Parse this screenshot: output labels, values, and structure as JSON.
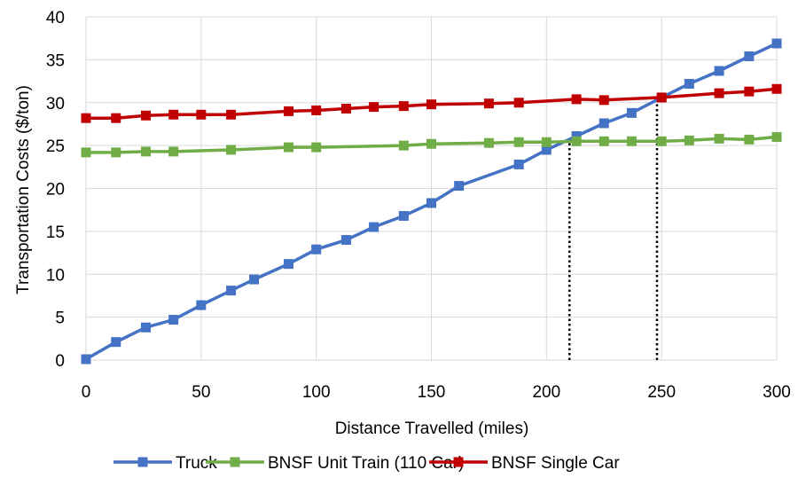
{
  "chart_data": {
    "type": "line",
    "title": "",
    "xlabel": "Distance Travelled (miles)",
    "ylabel": "Transportation Costs ($/ton)",
    "xlim": [
      0,
      300
    ],
    "ylim": [
      0,
      40
    ],
    "xticks": [
      0,
      50,
      100,
      150,
      200,
      250,
      300
    ],
    "yticks": [
      0,
      5,
      10,
      15,
      20,
      25,
      30,
      35,
      40
    ],
    "grid": true,
    "legend_position": "bottom",
    "series": [
      {
        "name": "Truck",
        "color": "#4472C4",
        "x": [
          0,
          13,
          26,
          38,
          50,
          63,
          73,
          88,
          100,
          113,
          125,
          138,
          150,
          162,
          188,
          200,
          213,
          225,
          237,
          250,
          262,
          275,
          288,
          300
        ],
        "y": [
          0.1,
          2.1,
          3.8,
          4.7,
          6.4,
          8.1,
          9.4,
          11.2,
          12.9,
          14.0,
          15.5,
          16.8,
          18.3,
          20.3,
          22.8,
          24.5,
          26.1,
          27.6,
          28.8,
          30.6,
          32.2,
          33.7,
          35.4,
          36.9
        ]
      },
      {
        "name": "BNSF Unit Train (110 Car)",
        "color": "#70AD47",
        "x": [
          0,
          13,
          26,
          38,
          63,
          88,
          100,
          138,
          150,
          175,
          188,
          200,
          213,
          225,
          237,
          250,
          262,
          275,
          288,
          300
        ],
        "y": [
          24.2,
          24.2,
          24.3,
          24.3,
          24.5,
          24.8,
          24.8,
          25.0,
          25.2,
          25.3,
          25.4,
          25.4,
          25.5,
          25.5,
          25.5,
          25.5,
          25.6,
          25.8,
          25.7,
          26.0
        ]
      },
      {
        "name": "BNSF Single Car",
        "color": "#C00000",
        "x": [
          0,
          13,
          26,
          38,
          50,
          63,
          88,
          100,
          113,
          125,
          138,
          150,
          175,
          188,
          213,
          225,
          250,
          275,
          288,
          300
        ],
        "y": [
          28.2,
          28.2,
          28.5,
          28.6,
          28.6,
          28.6,
          29.0,
          29.1,
          29.3,
          29.5,
          29.6,
          29.8,
          29.9,
          30.0,
          30.4,
          30.3,
          30.6,
          31.1,
          31.3,
          31.6
        ]
      }
    ],
    "reference_lines": [
      {
        "x": 210,
        "y_from": 0,
        "y_to": 26.0,
        "style": "dotted",
        "color": "#000000"
      },
      {
        "x": 248,
        "y_from": 0,
        "y_to": 30.6,
        "style": "dotted",
        "color": "#000000"
      }
    ]
  }
}
